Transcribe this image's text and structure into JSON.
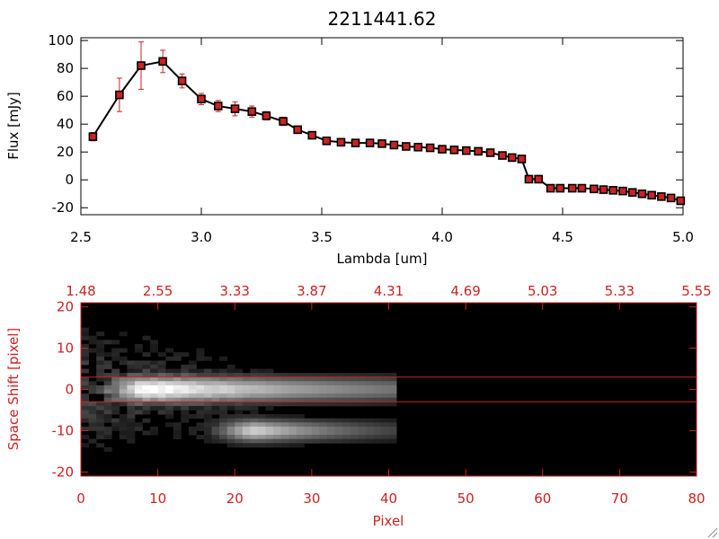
{
  "title": "2211441.62",
  "colors": {
    "series_line": "#000000",
    "marker_fill": "#cc2222",
    "error_bar": "#cc2222",
    "bottom_axes": "#cc2222",
    "extraction_lines": "#cc2222",
    "image_background": "#000000"
  },
  "chart_data": [
    {
      "type": "line",
      "xlabel": "Lambda [um]",
      "ylabel": "Flux [mJy]",
      "xlim": [
        2.5,
        5.0
      ],
      "ylim": [
        -25,
        102
      ],
      "xticks": [
        "2.5",
        "3.0",
        "3.5",
        "4.0",
        "4.5",
        "5.0"
      ],
      "yticks": [
        "-20",
        "0",
        "20",
        "40",
        "60",
        "80",
        "100"
      ],
      "grid": false,
      "series": [
        {
          "x": [
            2.55,
            2.66,
            2.75,
            2.84,
            2.92,
            3.0,
            3.07,
            3.14,
            3.21,
            3.27,
            3.34,
            3.4,
            3.46,
            3.52,
            3.58,
            3.64,
            3.7,
            3.75,
            3.8,
            3.85,
            3.9,
            3.95,
            4.0,
            4.05,
            4.1,
            4.15,
            4.2,
            4.25,
            4.29,
            4.33,
            4.36,
            4.4,
            4.45,
            4.49,
            4.54,
            4.58,
            4.63,
            4.67,
            4.71,
            4.75,
            4.79,
            4.83,
            4.87,
            4.91,
            4.95,
            4.99
          ],
          "y": [
            31,
            61,
            82,
            85,
            71,
            58,
            53,
            51,
            49,
            46,
            42,
            36,
            32,
            28,
            27,
            26.5,
            26.5,
            26,
            25,
            24,
            23.5,
            23,
            22,
            21.5,
            21,
            20.5,
            19.5,
            17.5,
            16,
            15,
            0.5,
            0.5,
            -6,
            -6,
            -6,
            -6,
            -6.5,
            -7,
            -7.5,
            -8,
            -9,
            -10,
            -11,
            -12,
            -13,
            -15
          ],
          "yerr": [
            3,
            12,
            17,
            8,
            5,
            4,
            4,
            5,
            4,
            3,
            3,
            2,
            2,
            2,
            1.5,
            1.5,
            1.5,
            1.5,
            1.5,
            1.5,
            1.5,
            1.5,
            1.5,
            1.5,
            1.5,
            1.5,
            1.5,
            1.5,
            1.5,
            1.5,
            1.5,
            1.5,
            1.5,
            1.5,
            1.5,
            1.5,
            1.5,
            1.5,
            1.5,
            1.5,
            1.5,
            1.5,
            1.5,
            1.5,
            1.5,
            1.5
          ]
        }
      ]
    },
    {
      "type": "heatmap",
      "xlabel": "Pixel",
      "ylabel": "Space Shift [pixel]",
      "xlim": [
        0,
        80
      ],
      "ylim": [
        -21,
        21
      ],
      "xticks": [
        "0",
        "10",
        "20",
        "30",
        "40",
        "50",
        "60",
        "70",
        "80"
      ],
      "yticks": [
        "-20",
        "-10",
        "0",
        "10",
        "20"
      ],
      "top_axis_ticks": [
        "1.48",
        "2.55",
        "3.33",
        "3.87",
        "4.31",
        "4.69",
        "5.03",
        "5.33",
        "5.55"
      ],
      "extraction_window": [
        -3,
        3
      ],
      "sources": [
        {
          "x_start": 3,
          "x_end": 41,
          "x_peak": 9,
          "y_center": 0,
          "peak": 1.0,
          "decay": 0.035,
          "y_sigma": 1.9
        },
        {
          "x_start": 0,
          "x_end": 41,
          "x_peak": 23,
          "y_center": -10,
          "peak": 0.75,
          "decay": 0.09,
          "y_sigma": 1.6
        }
      ],
      "diffuse_halo": {
        "x_end": 27,
        "y_range": [
          -15,
          18
        ],
        "level": 0.15
      }
    }
  ]
}
